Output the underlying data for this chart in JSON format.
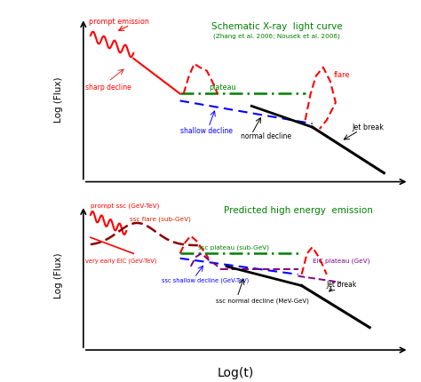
{
  "title1": "Schematic X-ray  light curve",
  "subtitle1": "(Zhang et al. 2006; Nousek et al. 2006)",
  "title2": "Predicted high energy  emission",
  "xlabel": "Log(t)",
  "ylabel": "Log (Flux)",
  "colors": {
    "red": "#ff0000",
    "dark_red": "#990000",
    "green": "#008000",
    "blue": "#0000ff",
    "black": "#000000",
    "purple": "#9900cc"
  }
}
